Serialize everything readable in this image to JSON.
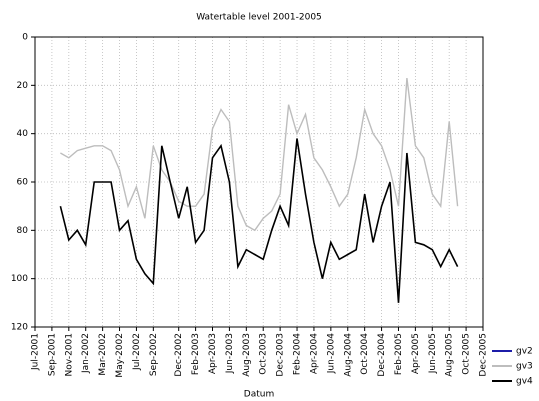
{
  "chart_data": {
    "type": "line",
    "title": "Watertable level 2001-2005",
    "x_label": "Datum",
    "x": [
      "2001-10",
      "2001-11",
      "2001-12",
      "2002-01",
      "2002-02",
      "2002-03",
      "2002-04",
      "2002-05",
      "2002-06",
      "2002-07",
      "2002-08",
      "2002-09",
      "2002-10",
      "2002-11",
      "2002-12",
      "2003-01",
      "2003-02",
      "2003-03",
      "2003-04",
      "2003-05",
      "2003-06",
      "2003-07",
      "2003-08",
      "2003-09",
      "2003-10",
      "2003-11",
      "2003-12",
      "2004-01",
      "2004-02",
      "2004-03",
      "2004-04",
      "2004-05",
      "2004-06",
      "2004-07",
      "2004-08",
      "2004-09",
      "2004-10",
      "2004-11",
      "2004-12",
      "2005-01",
      "2005-02",
      "2005-03",
      "2005-04",
      "2005-05",
      "2005-06",
      "2005-07",
      "2005-08",
      "2005-09"
    ],
    "series": [
      {
        "name": "gv2",
        "color": "#1c1ca8",
        "values": [
          null,
          null,
          null,
          null,
          null,
          null,
          null,
          null,
          null,
          null,
          null,
          null,
          null,
          null,
          null,
          null,
          null,
          null,
          null,
          null,
          null,
          null,
          null,
          null,
          null,
          null,
          null,
          null,
          null,
          null,
          null,
          null,
          null,
          null,
          null,
          null,
          null,
          null,
          null,
          null,
          null,
          null,
          null,
          null,
          null,
          null,
          null,
          null
        ]
      },
      {
        "name": "gv3",
        "color": "#bdbdbd",
        "values": [
          48,
          50,
          47,
          46,
          45,
          45,
          47,
          55,
          70,
          62,
          75,
          45,
          55,
          60,
          68,
          70,
          70,
          65,
          38,
          30,
          35,
          70,
          78,
          80,
          75,
          72,
          65,
          28,
          40,
          32,
          50,
          55,
          62,
          70,
          65,
          50,
          30,
          40,
          45,
          55,
          70,
          17,
          45,
          50,
          65,
          70,
          35,
          70
        ]
      },
      {
        "name": "gv4",
        "color": "#000000",
        "values": [
          70,
          84,
          80,
          86,
          60,
          60,
          60,
          80,
          76,
          92,
          98,
          102,
          45,
          60,
          75,
          62,
          85,
          80,
          50,
          45,
          60,
          95,
          88,
          90,
          92,
          80,
          70,
          78,
          42,
          65,
          85,
          100,
          85,
          92,
          90,
          88,
          65,
          85,
          70,
          60,
          110,
          48,
          85,
          86,
          88,
          95,
          88,
          95
        ]
      }
    ],
    "xlim": [
      "2001-07",
      "2005-12"
    ],
    "xticks": [
      {
        "value": "2001-07",
        "label": "Jul-2001"
      },
      {
        "value": "2001-09",
        "label": "Sep-2001"
      },
      {
        "value": "2001-11",
        "label": "Nov-2001"
      },
      {
        "value": "2002-01",
        "label": "Jan-2002"
      },
      {
        "value": "2002-03",
        "label": "Mar-2002"
      },
      {
        "value": "2002-05",
        "label": "May-2002"
      },
      {
        "value": "2002-07",
        "label": "Jul-2002"
      },
      {
        "value": "2002-09",
        "label": "Sep-2002"
      },
      {
        "value": "2002-12",
        "label": "Dec-2002"
      },
      {
        "value": "2003-02",
        "label": "Feb-2003"
      },
      {
        "value": "2003-04",
        "label": "Apr-2003"
      },
      {
        "value": "2003-06",
        "label": "Jun-2003"
      },
      {
        "value": "2003-08",
        "label": "Aug-2003"
      },
      {
        "value": "2003-10",
        "label": "Oct-2003"
      },
      {
        "value": "2003-12",
        "label": "Dec-2003"
      },
      {
        "value": "2004-02",
        "label": "Feb-2004"
      },
      {
        "value": "2004-04",
        "label": "Apr-2004"
      },
      {
        "value": "2004-06",
        "label": "Jun-2004"
      },
      {
        "value": "2004-08",
        "label": "Aug-2004"
      },
      {
        "value": "2004-10",
        "label": "Oct-2004"
      },
      {
        "value": "2004-12",
        "label": "Dec-2004"
      },
      {
        "value": "2005-02",
        "label": "Feb-2005"
      },
      {
        "value": "2005-04",
        "label": "Apr-2005"
      },
      {
        "value": "2005-06",
        "label": "Jun-2005"
      },
      {
        "value": "2005-08",
        "label": "Aug-2005"
      },
      {
        "value": "2005-10",
        "label": "Oct-2005"
      },
      {
        "value": "2005-12",
        "label": "Dec-2005"
      }
    ],
    "ylim": [
      0,
      120
    ],
    "yticks": [
      0,
      20,
      40,
      60,
      80,
      100,
      120
    ],
    "y_inverted": true,
    "grid": true,
    "legend_position": "lower-right"
  }
}
